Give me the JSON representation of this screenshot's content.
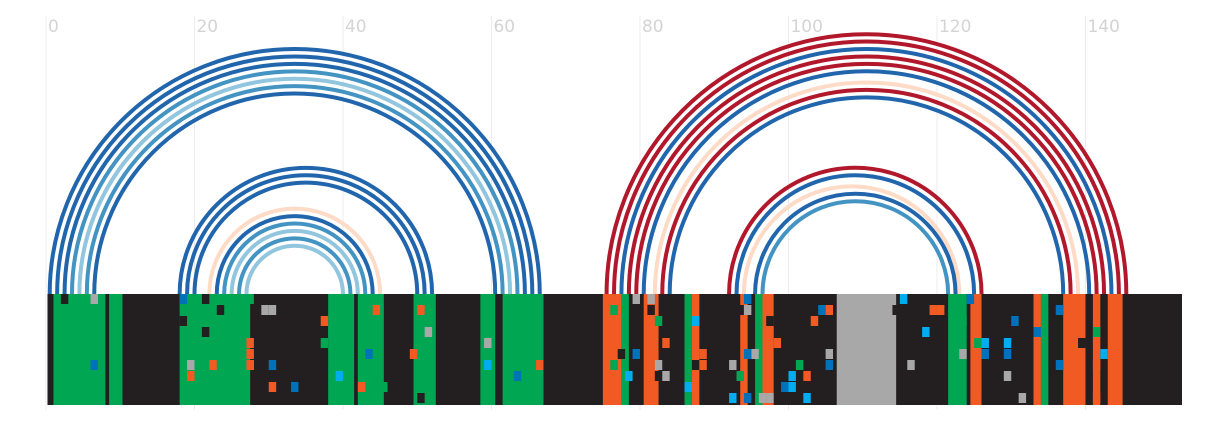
{
  "axis": {
    "ticks": [
      0,
      20,
      40,
      60,
      80,
      100,
      120,
      140
    ],
    "tick_labels": [
      "0",
      "20",
      "40",
      "60",
      "80",
      "100",
      "120",
      "140"
    ],
    "domain": [
      0,
      153
    ]
  },
  "colors": {
    "background_track": "#231f20",
    "green": "#00a651",
    "orange": "#f15a22",
    "gray": "#a8a8a8",
    "blue": "#0072bc",
    "cyan": "#00aeef",
    "arc_dark_blue": "#2166ac",
    "arc_mid_blue": "#4393c3",
    "arc_light_blue": "#92c5de",
    "arc_red": "#b2182b",
    "arc_peach": "#fddbc7"
  },
  "chart_data": {
    "type": "arc diagram with alignment track",
    "arc_groups": [
      {
        "center": 33.5,
        "color": "arc_dark_blue",
        "radii": [
          33,
          32,
          31
        ]
      },
      {
        "center": 33.5,
        "color": "arc_mid_blue",
        "radii": [
          30
        ]
      },
      {
        "center": 33.5,
        "color": "arc_light_blue",
        "radii": [
          29
        ]
      },
      {
        "center": 33.5,
        "color": "arc_mid_blue",
        "radii": [
          28
        ]
      },
      {
        "center": 33.5,
        "color": "arc_dark_blue",
        "radii": [
          27
        ]
      },
      {
        "center": 35,
        "color": "arc_dark_blue",
        "radii": [
          17,
          16,
          15
        ]
      },
      {
        "center": 33.5,
        "color": "arc_peach",
        "radii": [
          11.5
        ]
      },
      {
        "center": 33.5,
        "color": "arc_dark_blue",
        "radii": [
          10.5
        ]
      },
      {
        "center": 33.5,
        "color": "arc_mid_blue",
        "radii": [
          9.5
        ]
      },
      {
        "center": 33.5,
        "color": "arc_light_blue",
        "radii": [
          8.5
        ]
      },
      {
        "center": 33.5,
        "color": "arc_mid_blue",
        "radii": [
          7.5
        ]
      },
      {
        "center": 33.5,
        "color": "arc_light_blue",
        "radii": [
          6.5
        ]
      },
      {
        "center": 110.5,
        "color": "arc_red",
        "radii": [
          35,
          34
        ]
      },
      {
        "center": 110.5,
        "color": "arc_dark_blue",
        "radii": [
          33
        ]
      },
      {
        "center": 110.5,
        "color": "arc_red",
        "radii": [
          32,
          31
        ]
      },
      {
        "center": 110.5,
        "color": "arc_dark_blue",
        "radii": [
          30
        ]
      },
      {
        "center": 110.5,
        "color": "arc_peach",
        "radii": [
          28.5
        ]
      },
      {
        "center": 110.5,
        "color": "arc_red",
        "radii": [
          27.5
        ]
      },
      {
        "center": 110.5,
        "color": "arc_dark_blue",
        "radii": [
          26.5
        ]
      },
      {
        "center": 109,
        "color": "arc_red",
        "radii": [
          17
        ]
      },
      {
        "center": 109,
        "color": "arc_dark_blue",
        "radii": [
          16
        ]
      },
      {
        "center": 108.5,
        "color": "arc_peach",
        "radii": [
          14.5
        ]
      },
      {
        "center": 109,
        "color": "arc_dark_blue",
        "radii": [
          13.5
        ]
      },
      {
        "center": 109,
        "color": "arc_mid_blue",
        "radii": [
          12.5
        ]
      }
    ],
    "track_blocks": [
      {
        "start": 1,
        "end": 8,
        "color": "green"
      },
      {
        "start": 8.5,
        "end": 10.3,
        "color": "green"
      },
      {
        "start": 18,
        "end": 27.5,
        "color": "green"
      },
      {
        "start": 38,
        "end": 41.5,
        "color": "green"
      },
      {
        "start": 42,
        "end": 45.5,
        "color": "green"
      },
      {
        "start": 49.5,
        "end": 52.5,
        "color": "green"
      },
      {
        "start": 58.5,
        "end": 60.5,
        "color": "green"
      },
      {
        "start": 61.5,
        "end": 67,
        "color": "green"
      },
      {
        "start": 75,
        "end": 77.5,
        "color": "orange"
      },
      {
        "start": 77.5,
        "end": 78.5,
        "color": "green"
      },
      {
        "start": 80.5,
        "end": 82.5,
        "color": "orange"
      },
      {
        "start": 86,
        "end": 87,
        "color": "green"
      },
      {
        "start": 87,
        "end": 88,
        "color": "orange"
      },
      {
        "start": 93.5,
        "end": 94.5,
        "color": "orange"
      },
      {
        "start": 95.5,
        "end": 96.5,
        "color": "green"
      },
      {
        "start": 96.5,
        "end": 98,
        "color": "orange"
      },
      {
        "start": 106.5,
        "end": 114.5,
        "color": "gray"
      },
      {
        "start": 121.5,
        "end": 124,
        "color": "green"
      },
      {
        "start": 124.5,
        "end": 126,
        "color": "orange"
      },
      {
        "start": 133,
        "end": 134,
        "color": "orange"
      },
      {
        "start": 134,
        "end": 135,
        "color": "green"
      },
      {
        "start": 137,
        "end": 140,
        "color": "orange"
      },
      {
        "start": 141,
        "end": 142,
        "color": "orange"
      },
      {
        "start": 143,
        "end": 145,
        "color": "orange"
      }
    ]
  }
}
